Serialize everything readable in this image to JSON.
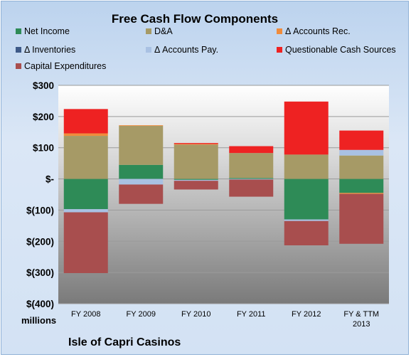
{
  "chart_data": {
    "type": "bar",
    "stacked": true,
    "title": "Free Cash Flow Components",
    "units_label": "millions",
    "company": "Isle of Capri Casinos",
    "categories": [
      "FY 2008",
      "FY 2009",
      "FY 2010",
      "FY 2011",
      "FY 2012",
      "FY & TTM 2013"
    ],
    "ylim": [
      -400,
      300
    ],
    "yticks": [
      300,
      200,
      100,
      0,
      -100,
      -200,
      -300,
      -400
    ],
    "ytick_labels": [
      "$300",
      "$200",
      "$100",
      "$-",
      "$(100)",
      "$(200)",
      "$(300)",
      "$(400)"
    ],
    "grid": true,
    "legend_position": "top",
    "series": [
      {
        "name": "Net Income",
        "color": "#2e8b57",
        "values": [
          -97,
          45,
          -3,
          3,
          -130,
          -45
        ]
      },
      {
        "name": "D&A",
        "color": "#a69a66",
        "values": [
          138,
          125,
          110,
          80,
          78,
          75
        ]
      },
      {
        "name": "Δ Accounts Rec.",
        "color": "#f08c3c",
        "values": [
          8,
          2,
          2,
          0,
          0,
          -3
        ]
      },
      {
        "name": "Δ Inventories",
        "color": "#3e5a88",
        "values": [
          0,
          0,
          0,
          0,
          0,
          0
        ]
      },
      {
        "name": "Δ Accounts Pay.",
        "color": "#a9c1e3",
        "values": [
          -10,
          -18,
          -3,
          -2,
          -5,
          18
        ]
      },
      {
        "name": "Questionable Cash Sources",
        "color": "#ee2222",
        "values": [
          78,
          0,
          3,
          22,
          170,
          62
        ]
      },
      {
        "name": "Capital Expenditures",
        "color": "#a84e4e",
        "values": [
          -195,
          -62,
          -28,
          -55,
          -78,
          -160
        ]
      }
    ]
  }
}
